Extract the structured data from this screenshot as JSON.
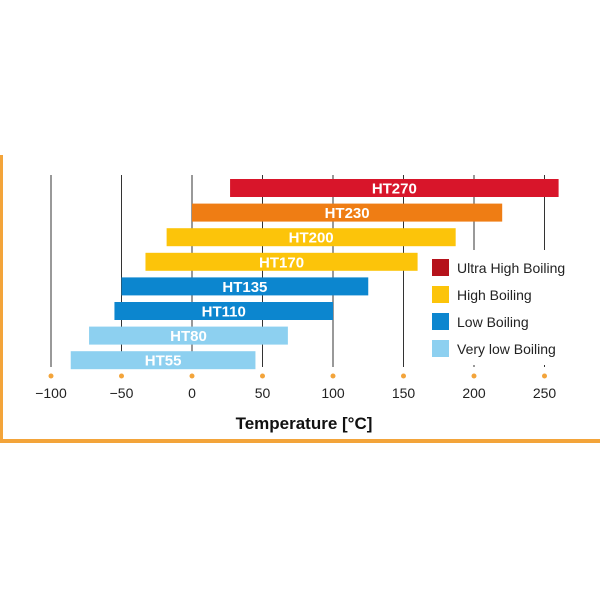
{
  "chart_data": {
    "type": "bar",
    "orientation": "horizontal-range",
    "title": "",
    "xlabel": "Temperature [°C]",
    "ylabel": "",
    "xlim": [
      -100,
      260
    ],
    "x_ticks": [
      -100,
      -50,
      0,
      50,
      100,
      150,
      200,
      250
    ],
    "x_tick_labels": [
      "−100",
      "−50",
      "0",
      "50",
      "100",
      "150",
      "200",
      "250"
    ],
    "grid": "vertical",
    "legend_position": "right",
    "categories": [
      "HT270",
      "HT230",
      "HT200",
      "HT170",
      "HT135",
      "HT110",
      "HT80",
      "HT55"
    ],
    "ranges": [
      {
        "name": "HT270",
        "start": 27,
        "end": 260,
        "group": "ultra"
      },
      {
        "name": "HT230",
        "start": 0,
        "end": 220,
        "group": "high_orange"
      },
      {
        "name": "HT200",
        "start": -18,
        "end": 187,
        "group": "high"
      },
      {
        "name": "HT170",
        "start": -33,
        "end": 160,
        "group": "high"
      },
      {
        "name": "HT135",
        "start": -50,
        "end": 125,
        "group": "low"
      },
      {
        "name": "HT110",
        "start": -55,
        "end": 100,
        "group": "low"
      },
      {
        "name": "HT80",
        "start": -73,
        "end": 68,
        "group": "very_low"
      },
      {
        "name": "HT55",
        "start": -86,
        "end": 45,
        "group": "very_low"
      }
    ],
    "group_colors": {
      "ultra": "#d8152a",
      "high_orange": "#ef7d14",
      "high": "#fcc40a",
      "low": "#0c86cf",
      "very_low": "#8dd0f0"
    },
    "legend": [
      {
        "label": "Ultra High Boiling",
        "color": "#b5121b"
      },
      {
        "label": "High Boiling",
        "color": "#fcc40a"
      },
      {
        "label": "Low Boiling",
        "color": "#0c86cf"
      },
      {
        "label": "Very low Boiling",
        "color": "#8dd0f0"
      }
    ],
    "accent_color": "#f3a43a"
  }
}
